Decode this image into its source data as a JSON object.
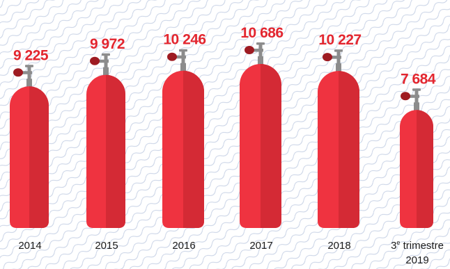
{
  "chart_data": {
    "type": "bar",
    "categories": [
      "2014",
      "2015",
      "2016",
      "2017",
      "2018",
      "3e trimestre 2019"
    ],
    "category_display": [
      {
        "main": "2014",
        "sup": "",
        "rest": "",
        "line2": ""
      },
      {
        "main": "2015",
        "sup": "",
        "rest": "",
        "line2": ""
      },
      {
        "main": "2016",
        "sup": "",
        "rest": "",
        "line2": ""
      },
      {
        "main": "2017",
        "sup": "",
        "rest": "",
        "line2": ""
      },
      {
        "main": "2018",
        "sup": "",
        "rest": "",
        "line2": ""
      },
      {
        "main": "3",
        "sup": "e",
        "rest": " trimestre",
        "line2": "2019"
      }
    ],
    "values": [
      9225,
      9972,
      10246,
      10686,
      10227,
      7684
    ],
    "value_labels": [
      "9 225",
      "9 972",
      "10 246",
      "10 686",
      "10 227",
      "7 684"
    ],
    "mark_style": "gas-cylinder",
    "colors": {
      "body_light": "#ef3340",
      "body_dark": "#d42a35",
      "valve": "#8c8c8c",
      "knob": "#9e1b22",
      "label": "#e3262f",
      "background_pattern": "#c9d3e6"
    }
  }
}
